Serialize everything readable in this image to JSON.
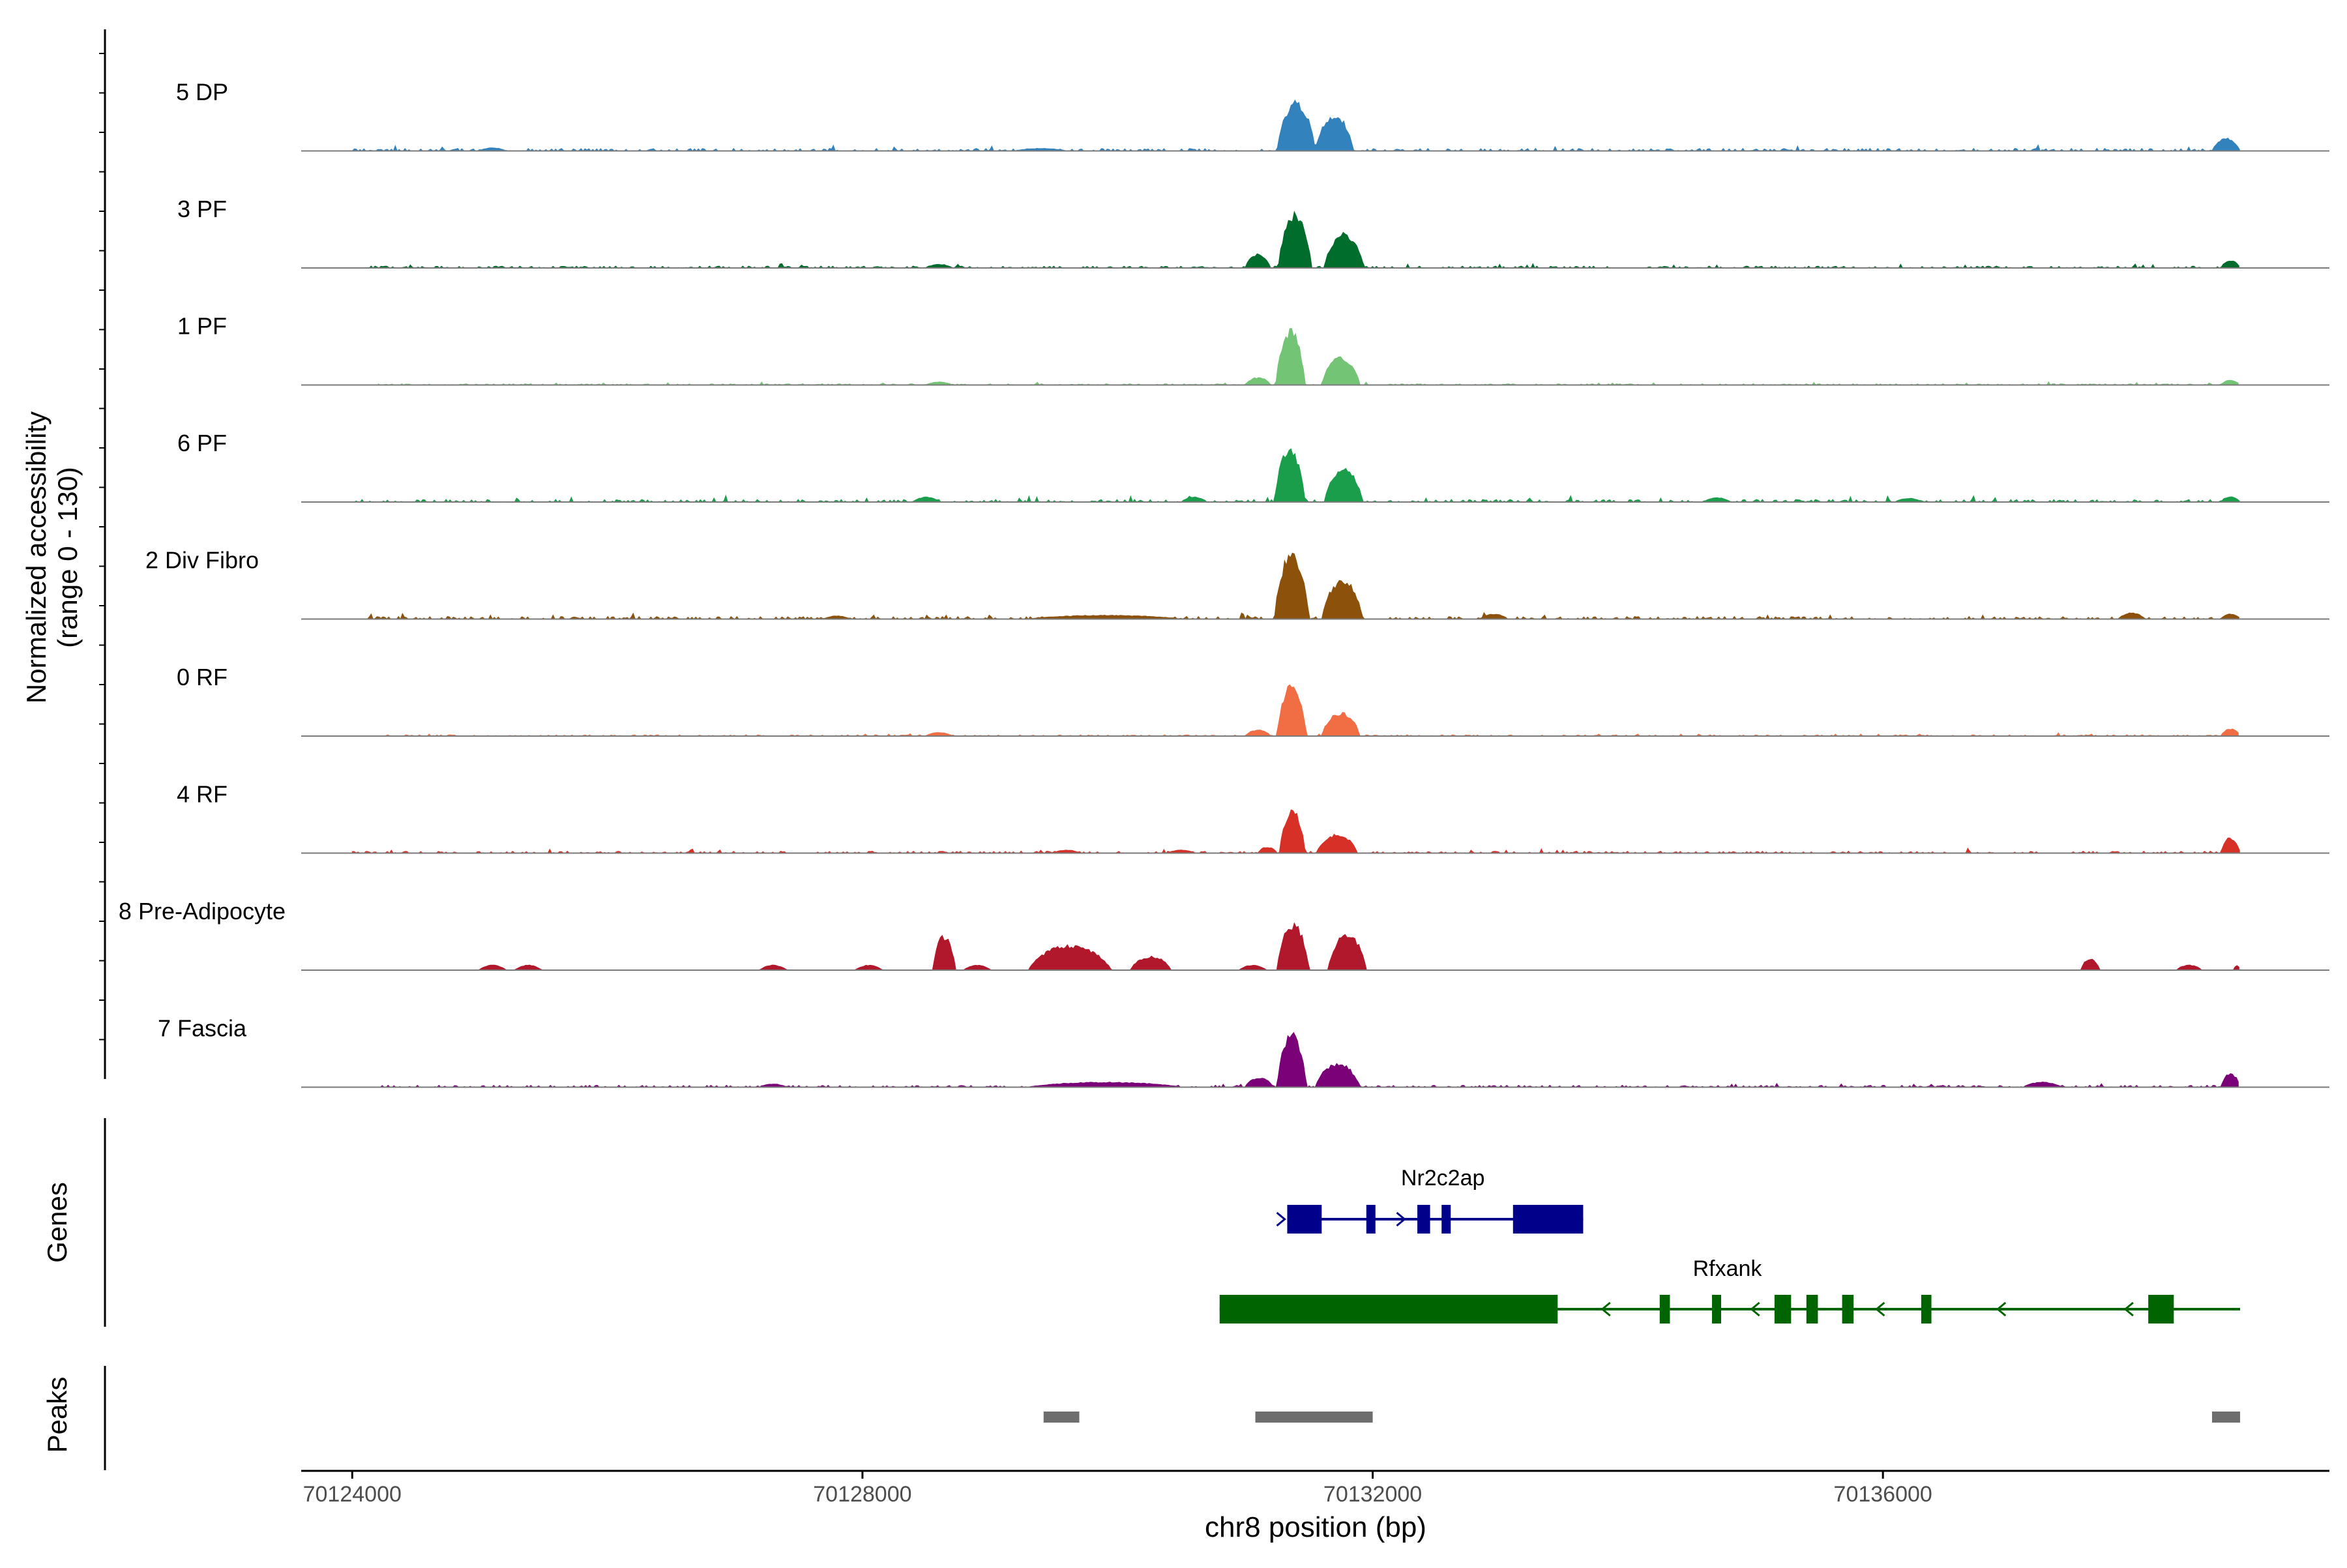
{
  "chart_data": {
    "type": "area",
    "chromosome": "chr8",
    "region": [
      70123600,
      70139500
    ],
    "ylabel_line1": "Normalized accessibility",
    "ylabel_line2": "(range 0 - 130)",
    "xlabel": "chr8 position (bp)",
    "xticks": [
      70124000,
      70128000,
      70132000,
      70136000
    ],
    "xtick_labels": [
      "70124000",
      "70128000",
      "70132000",
      "70136000"
    ],
    "coverage_range": [
      0,
      130
    ],
    "track_end": 70138800,
    "tracks": [
      {
        "name": "5 DP",
        "color": "#3182BD",
        "noise": 4,
        "seed": 3,
        "bumps": [
          [
            70129200,
            70129600,
            4
          ],
          [
            70131250,
            70131550,
            78
          ],
          [
            70131550,
            70131850,
            58
          ],
          [
            70138580,
            70138800,
            20
          ]
        ],
        "minor": [
          [
            70125100,
            5
          ]
        ]
      },
      {
        "name": "3 PF",
        "color": "#006D2C",
        "noise": 3,
        "seed": 7,
        "bumps": [
          [
            70131000,
            70131200,
            22
          ],
          [
            70131260,
            70131520,
            88
          ],
          [
            70131620,
            70131930,
            55
          ],
          [
            70138650,
            70138800,
            12
          ]
        ],
        "minor": [
          [
            70128600,
            6
          ]
        ]
      },
      {
        "name": "1 PF",
        "color": "#74C476",
        "noise": 2,
        "seed": 11,
        "bumps": [
          [
            70131000,
            70131200,
            12
          ],
          [
            70131240,
            70131470,
            88
          ],
          [
            70131600,
            70131900,
            45
          ],
          [
            70138650,
            70138800,
            8
          ]
        ],
        "minor": [
          [
            70128600,
            5
          ]
        ]
      },
      {
        "name": "6 PF",
        "color": "#1B9E4B",
        "noise": 4,
        "seed": 13,
        "bumps": [
          [
            70130500,
            70130700,
            8
          ],
          [
            70131230,
            70131470,
            85
          ],
          [
            70131620,
            70131920,
            55
          ],
          [
            70138650,
            70138800,
            9
          ]
        ],
        "minor": [
          [
            70128500,
            8
          ],
          [
            70134700,
            7
          ],
          [
            70136200,
            6
          ]
        ]
      },
      {
        "name": "2 Div Fibro",
        "color": "#8C510A",
        "noise": 4,
        "seed": 17,
        "bumps": [
          [
            70129300,
            70130500,
            6
          ],
          [
            70131230,
            70131500,
            105
          ],
          [
            70131600,
            70131920,
            63
          ],
          [
            70138650,
            70138800,
            8
          ]
        ],
        "minor": [
          [
            70127800,
            5
          ],
          [
            70132950,
            8
          ],
          [
            70137950,
            10
          ]
        ]
      },
      {
        "name": "0 RF",
        "color": "#F16D44",
        "noise": 2,
        "seed": 19,
        "bumps": [
          [
            70131000,
            70131200,
            10
          ],
          [
            70131250,
            70131480,
            82
          ],
          [
            70131600,
            70131900,
            38
          ],
          [
            70138650,
            70138800,
            12
          ]
        ],
        "minor": [
          [
            70128600,
            6
          ]
        ]
      },
      {
        "name": "4 RF",
        "color": "#D73027",
        "noise": 3,
        "seed": 23,
        "bumps": [
          [
            70131100,
            70131250,
            10
          ],
          [
            70131270,
            70131470,
            68
          ],
          [
            70131560,
            70131880,
            30
          ],
          [
            70138650,
            70138800,
            25
          ]
        ],
        "minor": [
          [
            70129600,
            5
          ],
          [
            70130500,
            5
          ]
        ]
      },
      {
        "name": "8 Pre-Adipocyte",
        "color": "#B2182B",
        "noise": 0,
        "seed": 29,
        "bumps": [
          [
            70128550,
            70128730,
            55
          ],
          [
            70129300,
            70129950,
            40
          ],
          [
            70130100,
            70130420,
            22
          ],
          [
            70131250,
            70131500,
            75
          ],
          [
            70131650,
            70131950,
            58
          ],
          [
            70137550,
            70137700,
            18
          ],
          [
            70138300,
            70138500,
            8
          ],
          [
            70138750,
            70138800,
            8
          ]
        ],
        "minor": [
          [
            70125100,
            8
          ],
          [
            70125380,
            8
          ],
          [
            70127300,
            8
          ],
          [
            70128050,
            8
          ],
          [
            70128900,
            8
          ],
          [
            70131060,
            8
          ]
        ]
      },
      {
        "name": "7 Fascia",
        "color": "#7A0177",
        "noise": 3,
        "seed": 31,
        "bumps": [
          [
            70129300,
            70130500,
            8
          ],
          [
            70131000,
            70131220,
            15
          ],
          [
            70131250,
            70131480,
            85
          ],
          [
            70131550,
            70131900,
            38
          ],
          [
            70137100,
            70137400,
            8
          ],
          [
            70138650,
            70138800,
            22
          ]
        ],
        "minor": [
          [
            70127300,
            5
          ]
        ]
      }
    ],
    "genes_label": "Genes",
    "genes": [
      {
        "name": "Nr2c2ap",
        "strand": "+",
        "color": "#00008B",
        "start": 70131330,
        "end": 70133650,
        "exons": [
          [
            70131330,
            70131600
          ],
          [
            70131950,
            70132020
          ],
          [
            70132350,
            70132450
          ],
          [
            70132540,
            70132600
          ],
          [
            70133100,
            70133650
          ]
        ],
        "arrows": [
          70131310,
          70132250
        ]
      },
      {
        "name": "Rfxank",
        "strand": "-",
        "color": "#006400",
        "start": 70130800,
        "end": 70138800,
        "exons": [
          [
            70130800,
            70133450
          ],
          [
            70134250,
            70134330
          ],
          [
            70134660,
            70134730
          ],
          [
            70135150,
            70135280
          ],
          [
            70135400,
            70135490
          ],
          [
            70135680,
            70135770
          ],
          [
            70136300,
            70136380
          ],
          [
            70138080,
            70138280
          ]
        ],
        "arrows": [
          70133800,
          70134970,
          70135950,
          70136900,
          70137900
        ]
      }
    ],
    "peaks_label": "Peaks",
    "peaks": [
      [
        70129420,
        70129700
      ],
      [
        70131080,
        70132000
      ],
      [
        70138580,
        70138800
      ]
    ],
    "peak_color": "#6E6E6E"
  }
}
